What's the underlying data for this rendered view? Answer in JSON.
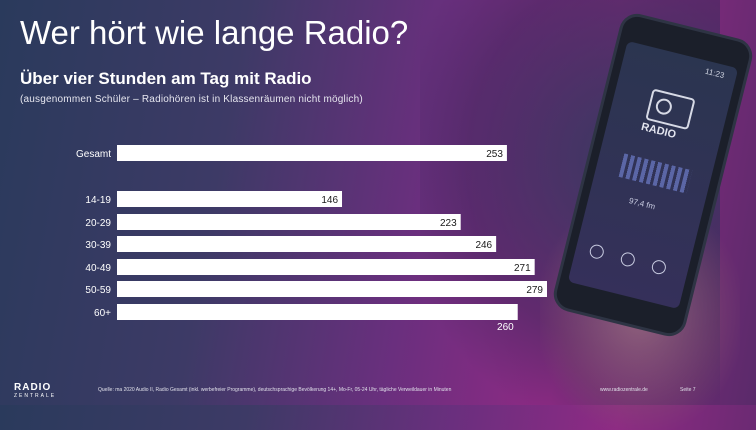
{
  "header": {
    "title": "Wer hört wie lange Radio?",
    "subtitle": "Über vier Stunden am Tag mit Radio",
    "note": "(ausgenommen Schüler – Radiohören ist in Klassenräumen nicht möglich)"
  },
  "chart_data": {
    "type": "bar",
    "orientation": "horizontal",
    "categories": [
      "Gesamt",
      "14-19",
      "20-29",
      "30-39",
      "40-49",
      "50-59",
      "60+"
    ],
    "values": [
      253,
      146,
      223,
      246,
      271,
      279,
      260
    ],
    "title": "",
    "xlabel": "",
    "ylabel": "",
    "xlim": [
      0,
      279
    ],
    "grid": false,
    "legend": "none",
    "bar_color": "#ffffff",
    "label_color": "#1a1a1a"
  },
  "background": {
    "phone_time": "11:23",
    "radio_label": "RADIO",
    "frequency": "97,4 fm"
  },
  "footer": {
    "logo": "RADIO",
    "logo_sub": "ZENTRALE",
    "source": "Quelle: ma 2020 Audio II, Radio Gesamt (inkl. werbefreier Programme), deutschsprachige Bevölkerung 14+, Mo-Fr, 05-24 Uhr, tägliche Verweildauer in Minuten",
    "url": "www.radiozentrale.de",
    "page": "Seite 7"
  }
}
